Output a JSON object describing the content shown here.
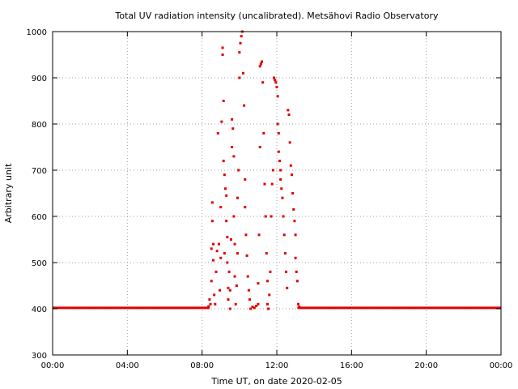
{
  "chart_data": {
    "type": "scatter",
    "title": "Total UV radiation intensity (uncalibrated). Metsähovi Radio Observatory",
    "xlabel": "Time UT, on date 2020-02-05",
    "ylabel": "Arbitrary unit",
    "xlim": [
      0,
      24
    ],
    "ylim": [
      300,
      1000
    ],
    "x_unit": "hours UT",
    "x_ticks": [
      0,
      4,
      8,
      12,
      16,
      20,
      24
    ],
    "x_tick_labels": [
      "00:00",
      "04:00",
      "08:00",
      "12:00",
      "16:00",
      "20:00",
      "00:00"
    ],
    "y_ticks": [
      300,
      400,
      500,
      600,
      700,
      800,
      900,
      1000
    ],
    "y_tick_labels": [
      "300",
      "400",
      "500",
      "600",
      "700",
      "800",
      "900",
      "1000"
    ],
    "grid": true,
    "grid_style": "dotted",
    "marker_color": "#e00000",
    "baseline": {
      "value": 402,
      "x_ranges": [
        [
          0,
          8.4
        ],
        [
          13.1,
          24
        ]
      ]
    },
    "points": [
      [
        8.35,
        405
      ],
      [
        8.4,
        420
      ],
      [
        8.45,
        410
      ],
      [
        8.5,
        460
      ],
      [
        8.5,
        530
      ],
      [
        8.55,
        590
      ],
      [
        8.55,
        630
      ],
      [
        8.6,
        540
      ],
      [
        8.6,
        505
      ],
      [
        8.65,
        430
      ],
      [
        8.7,
        410
      ],
      [
        8.75,
        480
      ],
      [
        8.8,
        525
      ],
      [
        8.85,
        780
      ],
      [
        8.9,
        540
      ],
      [
        8.95,
        440
      ],
      [
        9.0,
        510
      ],
      [
        9.0,
        620
      ],
      [
        9.05,
        805
      ],
      [
        9.1,
        965
      ],
      [
        9.1,
        950
      ],
      [
        9.15,
        720
      ],
      [
        9.15,
        850
      ],
      [
        9.2,
        690
      ],
      [
        9.2,
        520
      ],
      [
        9.25,
        660
      ],
      [
        9.3,
        645
      ],
      [
        9.3,
        590
      ],
      [
        9.35,
        555
      ],
      [
        9.35,
        500
      ],
      [
        9.4,
        445
      ],
      [
        9.4,
        420
      ],
      [
        9.45,
        480
      ],
      [
        9.5,
        440
      ],
      [
        9.5,
        400
      ],
      [
        9.55,
        550
      ],
      [
        9.6,
        750
      ],
      [
        9.6,
        810
      ],
      [
        9.65,
        790
      ],
      [
        9.7,
        730
      ],
      [
        9.7,
        600
      ],
      [
        9.75,
        540
      ],
      [
        9.75,
        470
      ],
      [
        9.8,
        410
      ],
      [
        9.85,
        450
      ],
      [
        9.9,
        520
      ],
      [
        9.9,
        640
      ],
      [
        9.95,
        700
      ],
      [
        10.0,
        900
      ],
      [
        10.0,
        955
      ],
      [
        10.05,
        975
      ],
      [
        10.1,
        990
      ],
      [
        10.15,
        1000
      ],
      [
        10.2,
        910
      ],
      [
        10.25,
        840
      ],
      [
        10.3,
        680
      ],
      [
        10.3,
        620
      ],
      [
        10.35,
        560
      ],
      [
        10.4,
        515
      ],
      [
        10.45,
        470
      ],
      [
        10.5,
        440
      ],
      [
        10.55,
        420
      ],
      [
        10.6,
        400
      ],
      [
        10.7,
        404
      ],
      [
        10.8,
        402
      ],
      [
        10.9,
        406
      ],
      [
        11.0,
        410
      ],
      [
        11.0,
        455
      ],
      [
        11.05,
        560
      ],
      [
        11.1,
        750
      ],
      [
        11.1,
        925
      ],
      [
        11.15,
        930
      ],
      [
        11.2,
        935
      ],
      [
        11.25,
        890
      ],
      [
        11.3,
        780
      ],
      [
        11.35,
        670
      ],
      [
        11.4,
        600
      ],
      [
        11.45,
        520
      ],
      [
        11.5,
        460
      ],
      [
        11.5,
        410
      ],
      [
        11.55,
        400
      ],
      [
        11.6,
        430
      ],
      [
        11.65,
        480
      ],
      [
        11.7,
        600
      ],
      [
        11.75,
        670
      ],
      [
        11.8,
        700
      ],
      [
        11.85,
        900
      ],
      [
        11.9,
        895
      ],
      [
        11.95,
        890
      ],
      [
        12.0,
        880
      ],
      [
        12.05,
        860
      ],
      [
        12.05,
        800
      ],
      [
        12.1,
        780
      ],
      [
        12.1,
        740
      ],
      [
        12.15,
        720
      ],
      [
        12.2,
        700
      ],
      [
        12.2,
        680
      ],
      [
        12.25,
        660
      ],
      [
        12.3,
        640
      ],
      [
        12.35,
        600
      ],
      [
        12.4,
        560
      ],
      [
        12.45,
        520
      ],
      [
        12.5,
        480
      ],
      [
        12.55,
        445
      ],
      [
        12.6,
        830
      ],
      [
        12.65,
        820
      ],
      [
        12.7,
        760
      ],
      [
        12.75,
        710
      ],
      [
        12.8,
        690
      ],
      [
        12.85,
        650
      ],
      [
        12.9,
        615
      ],
      [
        12.95,
        590
      ],
      [
        13.0,
        560
      ],
      [
        13.0,
        510
      ],
      [
        13.05,
        480
      ],
      [
        13.1,
        460
      ],
      [
        13.15,
        410
      ],
      [
        13.2,
        404
      ]
    ]
  }
}
